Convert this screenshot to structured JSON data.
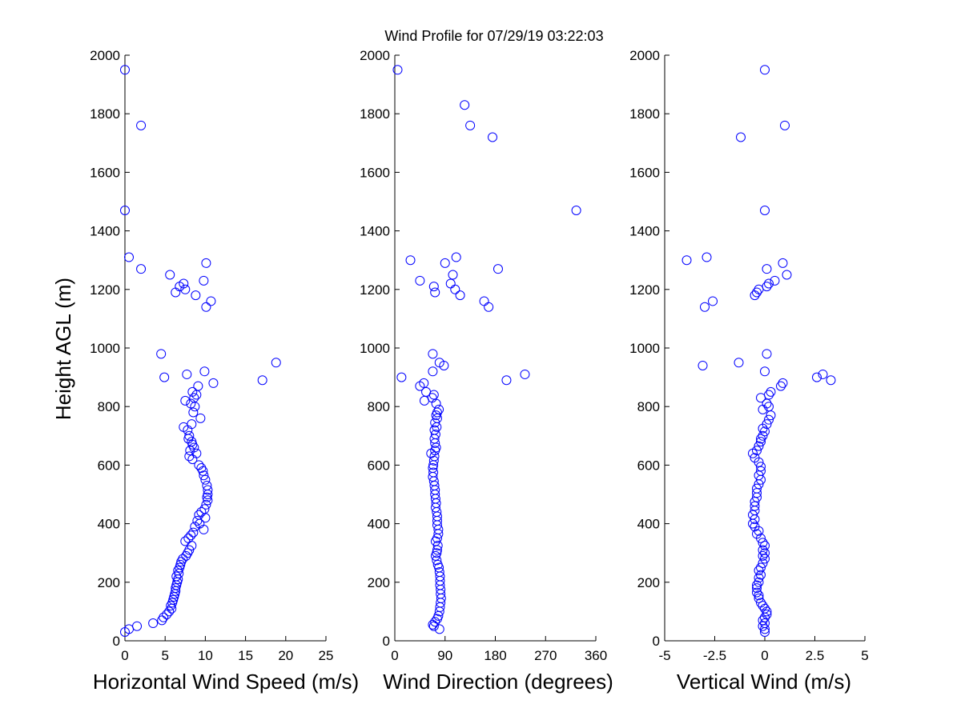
{
  "title": "Wind Profile for  07/29/19 03:22:03",
  "ylabel": "Height AGL (m)",
  "marker_color": "#0000ff",
  "chart_data": [
    {
      "type": "scatter",
      "xlabel": "Horizontal Wind Speed (m/s)",
      "ylabel": "Height AGL (m)",
      "xlim": [
        0,
        25
      ],
      "ylim": [
        0,
        2000
      ],
      "xticks": [
        0,
        5,
        10,
        15,
        20,
        25
      ],
      "xtick_labels": [
        "0",
        "5",
        "10",
        "15",
        "20",
        "25"
      ],
      "yticks": [
        0,
        200,
        400,
        600,
        800,
        1000,
        1200,
        1400,
        1600,
        1800,
        2000
      ],
      "ytick_labels": [
        "0",
        "200",
        "400",
        "600",
        "800",
        "1000",
        "1200",
        "1400",
        "1600",
        "1800",
        "2000"
      ],
      "grid": false,
      "points": [
        [
          0.0,
          1950
        ],
        [
          2.0,
          1760
        ],
        [
          0.0,
          1470
        ],
        [
          0.5,
          1310
        ],
        [
          2.0,
          1270
        ],
        [
          5.6,
          1250
        ],
        [
          7.3,
          1220
        ],
        [
          6.8,
          1210
        ],
        [
          9.8,
          1230
        ],
        [
          10.1,
          1290
        ],
        [
          6.3,
          1190
        ],
        [
          7.5,
          1200
        ],
        [
          8.8,
          1180
        ],
        [
          10.7,
          1160
        ],
        [
          10.1,
          1140
        ],
        [
          4.5,
          980
        ],
        [
          18.8,
          950
        ],
        [
          17.1,
          890
        ],
        [
          9.9,
          920
        ],
        [
          7.7,
          910
        ],
        [
          4.9,
          900
        ],
        [
          11.0,
          880
        ],
        [
          9.1,
          870
        ],
        [
          8.4,
          850
        ],
        [
          8.9,
          840
        ],
        [
          8.6,
          830
        ],
        [
          7.5,
          820
        ],
        [
          8.2,
          810
        ],
        [
          8.7,
          800
        ],
        [
          8.5,
          780
        ],
        [
          9.4,
          760
        ],
        [
          8.3,
          740
        ],
        [
          7.8,
          720
        ],
        [
          7.3,
          730
        ],
        [
          8.0,
          700
        ],
        [
          7.9,
          690
        ],
        [
          8.3,
          680
        ],
        [
          8.4,
          670
        ],
        [
          8.6,
          660
        ],
        [
          8.1,
          650
        ],
        [
          8.9,
          640
        ],
        [
          8.0,
          630
        ],
        [
          8.4,
          620
        ],
        [
          9.2,
          600
        ],
        [
          9.5,
          590
        ],
        [
          9.7,
          580
        ],
        [
          9.8,
          565
        ],
        [
          10.0,
          550
        ],
        [
          10.2,
          530
        ],
        [
          10.3,
          515
        ],
        [
          10.3,
          500
        ],
        [
          10.2,
          490
        ],
        [
          10.3,
          480
        ],
        [
          10.1,
          465
        ],
        [
          9.9,
          450
        ],
        [
          9.5,
          440
        ],
        [
          9.2,
          430
        ],
        [
          10.0,
          420
        ],
        [
          9.0,
          410
        ],
        [
          9.3,
          400
        ],
        [
          8.7,
          390
        ],
        [
          9.8,
          380
        ],
        [
          8.5,
          370
        ],
        [
          8.2,
          360
        ],
        [
          7.9,
          350
        ],
        [
          7.5,
          340
        ],
        [
          8.3,
          325
        ],
        [
          8.0,
          310
        ],
        [
          7.8,
          300
        ],
        [
          7.6,
          290
        ],
        [
          7.2,
          280
        ],
        [
          7.0,
          270
        ],
        [
          6.9,
          260
        ],
        [
          6.8,
          250
        ],
        [
          6.6,
          240
        ],
        [
          6.7,
          230
        ],
        [
          6.4,
          220
        ],
        [
          6.6,
          210
        ],
        [
          6.5,
          200
        ],
        [
          6.4,
          190
        ],
        [
          6.3,
          180
        ],
        [
          6.3,
          170
        ],
        [
          6.2,
          160
        ],
        [
          6.1,
          150
        ],
        [
          6.0,
          140
        ],
        [
          5.9,
          130
        ],
        [
          5.7,
          120
        ],
        [
          5.8,
          110
        ],
        [
          5.5,
          100
        ],
        [
          5.2,
          90
        ],
        [
          4.8,
          80
        ],
        [
          4.6,
          70
        ],
        [
          3.5,
          60
        ],
        [
          1.5,
          50
        ],
        [
          0.5,
          40
        ],
        [
          0.0,
          30
        ]
      ]
    },
    {
      "type": "scatter",
      "xlabel": "Wind Direction (degrees)",
      "xlim": [
        0,
        360
      ],
      "ylim": [
        0,
        2000
      ],
      "xticks": [
        0,
        90,
        180,
        270,
        360
      ],
      "xtick_labels": [
        "0",
        "90",
        "180",
        "270",
        "360"
      ],
      "yticks": [
        0,
        200,
        400,
        600,
        800,
        1000,
        1200,
        1400,
        1600,
        1800,
        2000
      ],
      "ytick_labels": [
        "0",
        "200",
        "400",
        "600",
        "800",
        "1000",
        "1200",
        "1400",
        "1600",
        "1800",
        "2000"
      ],
      "grid": false,
      "points": [
        [
          5,
          1950
        ],
        [
          125,
          1830
        ],
        [
          135,
          1760
        ],
        [
          175,
          1720
        ],
        [
          325,
          1470
        ],
        [
          28,
          1300
        ],
        [
          110,
          1310
        ],
        [
          90,
          1290
        ],
        [
          185,
          1270
        ],
        [
          104,
          1250
        ],
        [
          45,
          1230
        ],
        [
          100,
          1220
        ],
        [
          70,
          1210
        ],
        [
          108,
          1200
        ],
        [
          72,
          1190
        ],
        [
          117,
          1180
        ],
        [
          160,
          1160
        ],
        [
          168,
          1140
        ],
        [
          68,
          980
        ],
        [
          80,
          950
        ],
        [
          88,
          940
        ],
        [
          68,
          920
        ],
        [
          233,
          910
        ],
        [
          200,
          890
        ],
        [
          12,
          900
        ],
        [
          52,
          880
        ],
        [
          45,
          870
        ],
        [
          56,
          850
        ],
        [
          70,
          840
        ],
        [
          53,
          820
        ],
        [
          67,
          830
        ],
        [
          74,
          810
        ],
        [
          79,
          790
        ],
        [
          76,
          780
        ],
        [
          74,
          770
        ],
        [
          76,
          760
        ],
        [
          72,
          745
        ],
        [
          75,
          730
        ],
        [
          71,
          720
        ],
        [
          73,
          705
        ],
        [
          71,
          690
        ],
        [
          72,
          675
        ],
        [
          74,
          660
        ],
        [
          72,
          650
        ],
        [
          65,
          640
        ],
        [
          71,
          630
        ],
        [
          70,
          615
        ],
        [
          69,
          600
        ],
        [
          68,
          590
        ],
        [
          69,
          575
        ],
        [
          68,
          560
        ],
        [
          70,
          545
        ],
        [
          71,
          530
        ],
        [
          72,
          515
        ],
        [
          72,
          500
        ],
        [
          73,
          485
        ],
        [
          74,
          470
        ],
        [
          73,
          455
        ],
        [
          75,
          440
        ],
        [
          76,
          425
        ],
        [
          76,
          410
        ],
        [
          76,
          395
        ],
        [
          78,
          380
        ],
        [
          78,
          365
        ],
        [
          76,
          350
        ],
        [
          73,
          340
        ],
        [
          77,
          325
        ],
        [
          76,
          310
        ],
        [
          75,
          300
        ],
        [
          73,
          290
        ],
        [
          75,
          275
        ],
        [
          77,
          260
        ],
        [
          79,
          250
        ],
        [
          80,
          235
        ],
        [
          81,
          220
        ],
        [
          81,
          205
        ],
        [
          81,
          190
        ],
        [
          82,
          175
        ],
        [
          82,
          160
        ],
        [
          83,
          145
        ],
        [
          82,
          130
        ],
        [
          81,
          115
        ],
        [
          80,
          100
        ],
        [
          78,
          85
        ],
        [
          76,
          75
        ],
        [
          72,
          65
        ],
        [
          68,
          55
        ],
        [
          70,
          50
        ],
        [
          80,
          40
        ]
      ]
    },
    {
      "type": "scatter",
      "xlabel": "Vertical Wind (m/s)",
      "xlim": [
        -5,
        5
      ],
      "ylim": [
        0,
        2000
      ],
      "xticks": [
        -5,
        -2.5,
        0,
        2.5,
        5
      ],
      "xtick_labels": [
        "-5",
        "-2.5",
        "0",
        "2.5",
        "5"
      ],
      "yticks": [
        0,
        200,
        400,
        600,
        800,
        1000,
        1200,
        1400,
        1600,
        1800,
        2000
      ],
      "ytick_labels": [
        "0",
        "200",
        "400",
        "600",
        "800",
        "1000",
        "1200",
        "1400",
        "1600",
        "1800",
        "2000"
      ],
      "grid": false,
      "points": [
        [
          0.0,
          1950
        ],
        [
          1.0,
          1760
        ],
        [
          -1.2,
          1720
        ],
        [
          0.0,
          1470
        ],
        [
          -3.9,
          1300
        ],
        [
          -2.9,
          1310
        ],
        [
          0.9,
          1290
        ],
        [
          0.1,
          1270
        ],
        [
          1.1,
          1250
        ],
        [
          0.5,
          1230
        ],
        [
          0.2,
          1220
        ],
        [
          0.1,
          1210
        ],
        [
          -0.3,
          1200
        ],
        [
          -0.4,
          1190
        ],
        [
          -0.5,
          1180
        ],
        [
          -2.6,
          1160
        ],
        [
          -3.0,
          1140
        ],
        [
          0.1,
          980
        ],
        [
          -1.3,
          950
        ],
        [
          -3.1,
          940
        ],
        [
          0.0,
          920
        ],
        [
          2.9,
          910
        ],
        [
          2.6,
          900
        ],
        [
          3.3,
          890
        ],
        [
          0.9,
          880
        ],
        [
          0.8,
          870
        ],
        [
          0.3,
          850
        ],
        [
          0.2,
          840
        ],
        [
          -0.2,
          830
        ],
        [
          0.1,
          810
        ],
        [
          0.2,
          800
        ],
        [
          -0.1,
          790
        ],
        [
          0.3,
          770
        ],
        [
          0.2,
          755
        ],
        [
          0.1,
          740
        ],
        [
          -0.1,
          725
        ],
        [
          0.0,
          715
        ],
        [
          -0.1,
          700
        ],
        [
          -0.2,
          690
        ],
        [
          -0.2,
          680
        ],
        [
          -0.3,
          665
        ],
        [
          -0.4,
          650
        ],
        [
          -0.6,
          640
        ],
        [
          -0.5,
          625
        ],
        [
          -0.3,
          610
        ],
        [
          -0.2,
          595
        ],
        [
          -0.2,
          580
        ],
        [
          -0.3,
          565
        ],
        [
          -0.2,
          550
        ],
        [
          -0.3,
          535
        ],
        [
          -0.4,
          520
        ],
        [
          -0.4,
          505
        ],
        [
          -0.4,
          490
        ],
        [
          -0.5,
          475
        ],
        [
          -0.5,
          460
        ],
        [
          -0.5,
          445
        ],
        [
          -0.6,
          430
        ],
        [
          -0.5,
          415
        ],
        [
          -0.6,
          400
        ],
        [
          -0.5,
          390
        ],
        [
          -0.3,
          375
        ],
        [
          -0.4,
          365
        ],
        [
          -0.2,
          350
        ],
        [
          -0.1,
          335
        ],
        [
          0.0,
          325
        ],
        [
          -0.1,
          310
        ],
        [
          0.0,
          300
        ],
        [
          -0.1,
          290
        ],
        [
          0.0,
          280
        ],
        [
          -0.1,
          265
        ],
        [
          -0.2,
          250
        ],
        [
          -0.3,
          240
        ],
        [
          -0.2,
          225
        ],
        [
          -0.3,
          215
        ],
        [
          -0.3,
          200
        ],
        [
          -0.4,
          190
        ],
        [
          -0.4,
          180
        ],
        [
          -0.4,
          165
        ],
        [
          -0.3,
          155
        ],
        [
          -0.3,
          145
        ],
        [
          -0.2,
          130
        ],
        [
          -0.1,
          120
        ],
        [
          0.0,
          110
        ],
        [
          0.1,
          100
        ],
        [
          0.1,
          90
        ],
        [
          0.0,
          80
        ],
        [
          -0.1,
          70
        ],
        [
          0.0,
          60
        ],
        [
          -0.1,
          50
        ],
        [
          0.0,
          40
        ],
        [
          0.0,
          30
        ]
      ]
    }
  ]
}
